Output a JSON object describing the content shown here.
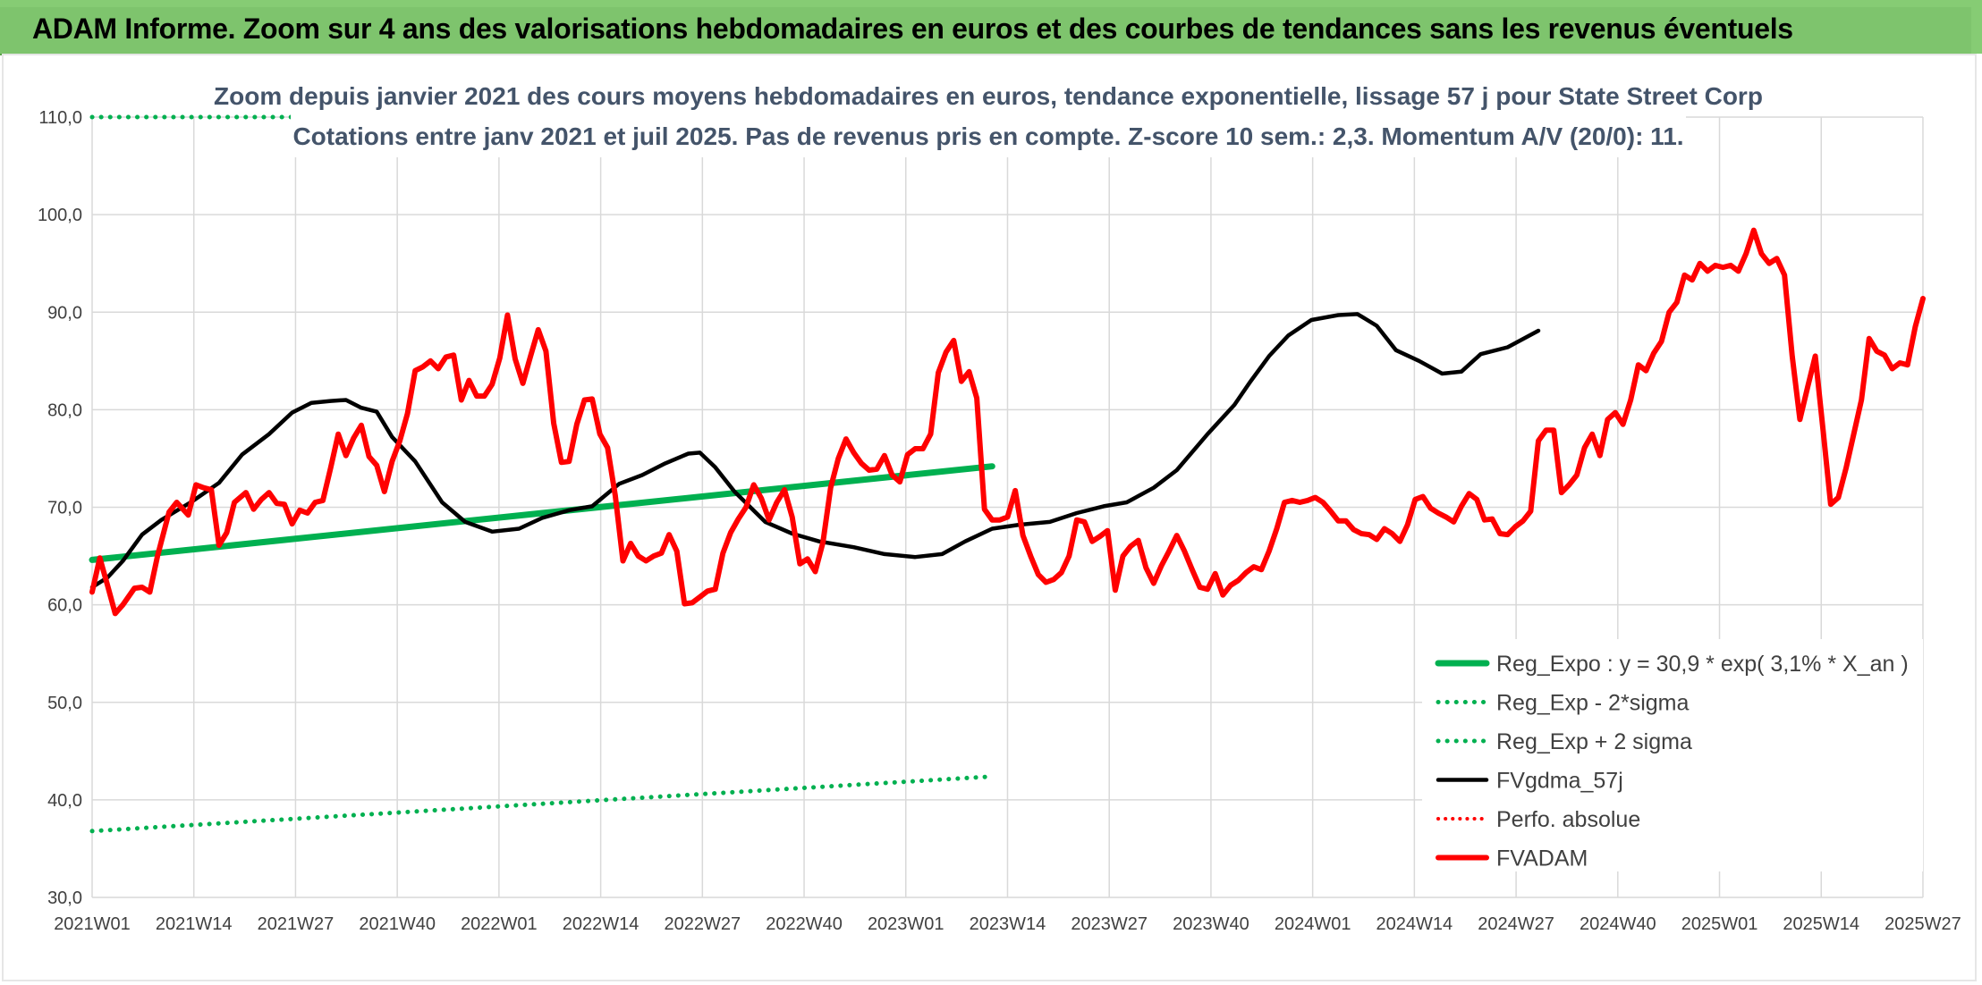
{
  "header": {
    "title": "ADAM Informe. Zoom sur 4 ans des valorisations hebdomadaires en euros et des courbes de tendances sans les revenus éventuels"
  },
  "colors": {
    "banner": "#7ec46d",
    "reg_expo": "#00b050",
    "reg_sigma": "#00b050",
    "fvgdma": "#000000",
    "perfo": "#ff0000",
    "fvadam": "#ff0000",
    "grid": "#d9d9d9"
  },
  "chart_data": {
    "type": "line",
    "title": "Zoom depuis janvier 2021 des cours moyens hebdomadaires en euros, tendance exponentielle, lissage 57 j pour State Street Corp",
    "subtitle": "Cotations entre janv 2021 et juil 2025. Pas de revenus pris en compte. Z-score 10 sem.: 2,3. Momentum A/V (20/0): 11.",
    "xlabel": "",
    "ylabel": "",
    "ylim": [
      30,
      110
    ],
    "y_ticks": [
      "30,0",
      "40,0",
      "50,0",
      "60,0",
      "70,0",
      "80,0",
      "90,0",
      "100,0",
      "110,0"
    ],
    "x_ticks": [
      "2021W01",
      "2021W14",
      "2021W27",
      "2021W40",
      "2022W01",
      "2022W14",
      "2022W27",
      "2022W40",
      "2023W01",
      "2023W14",
      "2023W27",
      "2023W40",
      "2024W01",
      "2024W14",
      "2024W27",
      "2024W40",
      "2025W01",
      "2025W14",
      "2025W27"
    ],
    "legend_position": "bottom-right",
    "grid": true,
    "series": [
      {
        "name": "Reg_Expo : y = 30,9 * exp( 3,1% *  X_an )",
        "style": "solid-thick",
        "points": [
          [
            0,
            64.6
          ],
          [
            234,
            74.2
          ]
        ]
      },
      {
        "name": "Reg_Exp - 2*sigma",
        "style": "dotted",
        "points": [
          [
            0,
            36.8
          ],
          [
            234,
            42.4
          ]
        ]
      },
      {
        "name": "Reg_Exp + 2 sigma",
        "style": "dotted",
        "points": [
          [
            0,
            110
          ],
          [
            234,
            110
          ]
        ]
      },
      {
        "name": "FVgdma_57j",
        "style": "solid",
        "points": [
          [
            0,
            61.8
          ],
          [
            4,
            62.8
          ],
          [
            8,
            64.5
          ],
          [
            13,
            67.2
          ],
          [
            18,
            68.7
          ],
          [
            26,
            70.6
          ],
          [
            33,
            72.5
          ],
          [
            39,
            75.4
          ],
          [
            46,
            77.5
          ],
          [
            52,
            79.7
          ],
          [
            57,
            80.7
          ],
          [
            62,
            80.9
          ],
          [
            66,
            81.0
          ],
          [
            70,
            80.2
          ],
          [
            74,
            79.8
          ],
          [
            78,
            77.2
          ],
          [
            84,
            74.7
          ],
          [
            91,
            70.5
          ],
          [
            97,
            68.5
          ],
          [
            104,
            67.5
          ],
          [
            111,
            67.8
          ],
          [
            117,
            68.9
          ],
          [
            124,
            69.7
          ],
          [
            130,
            70.1
          ],
          [
            137,
            72.4
          ],
          [
            143,
            73.3
          ],
          [
            149,
            74.5
          ],
          [
            155,
            75.5
          ],
          [
            158,
            75.6
          ],
          [
            162,
            74.1
          ],
          [
            167,
            71.6
          ],
          [
            175,
            68.5
          ],
          [
            182,
            67.3
          ],
          [
            189,
            66.5
          ],
          [
            198,
            65.9
          ],
          [
            206,
            65.2
          ],
          [
            214,
            64.9
          ],
          [
            221,
            65.2
          ],
          [
            227,
            66.5
          ],
          [
            234,
            67.8
          ],
          [
            241,
            68.2
          ],
          [
            249,
            68.5
          ],
          [
            256,
            69.4
          ],
          [
            263,
            70.1
          ],
          [
            269,
            70.5
          ],
          [
            276,
            72.0
          ],
          [
            282,
            73.8
          ],
          [
            290,
            77.5
          ],
          [
            297,
            80.5
          ],
          [
            301,
            82.8
          ],
          [
            306,
            85.5
          ],
          [
            311,
            87.6
          ],
          [
            317,
            89.2
          ],
          [
            324,
            89.7
          ],
          [
            329,
            89.8
          ],
          [
            334,
            88.6
          ],
          [
            339,
            86.1
          ],
          [
            345,
            85.0
          ],
          [
            351,
            83.7
          ],
          [
            356,
            83.9
          ],
          [
            361,
            85.7
          ],
          [
            368,
            86.4
          ],
          [
            376,
            88.1
          ]
        ]
      },
      {
        "name": "Perfo. absolue",
        "style": "dotted",
        "points": []
      },
      {
        "name": "FVADAM",
        "style": "solid-thick",
        "points": [
          [
            0,
            61.3
          ],
          [
            2,
            64.8
          ],
          [
            4,
            62.0
          ],
          [
            6,
            59.1
          ],
          [
            8,
            60.0
          ],
          [
            11,
            61.7
          ],
          [
            13,
            61.8
          ],
          [
            15,
            61.3
          ],
          [
            17,
            65.0
          ],
          [
            20,
            69.5
          ],
          [
            22,
            70.5
          ],
          [
            25,
            69.2
          ],
          [
            27,
            72.3
          ],
          [
            29,
            72.0
          ],
          [
            31,
            71.8
          ],
          [
            33,
            66.1
          ],
          [
            35,
            67.4
          ],
          [
            37,
            70.5
          ],
          [
            40,
            71.5
          ],
          [
            42,
            69.8
          ],
          [
            44,
            70.8
          ],
          [
            46,
            71.5
          ],
          [
            48,
            70.4
          ],
          [
            50,
            70.3
          ],
          [
            52,
            68.3
          ],
          [
            54,
            69.7
          ],
          [
            56,
            69.4
          ],
          [
            58,
            70.5
          ],
          [
            60,
            70.7
          ],
          [
            62,
            74.0
          ],
          [
            64,
            77.5
          ],
          [
            66,
            75.3
          ],
          [
            68,
            77.1
          ],
          [
            70,
            78.4
          ],
          [
            72,
            75.2
          ],
          [
            74,
            74.3
          ],
          [
            76,
            71.6
          ],
          [
            78,
            74.7
          ],
          [
            80,
            76.8
          ],
          [
            82,
            79.6
          ],
          [
            84,
            84.0
          ],
          [
            86,
            84.4
          ],
          [
            88,
            85.0
          ],
          [
            90,
            84.2
          ],
          [
            92,
            85.4
          ],
          [
            94,
            85.6
          ],
          [
            96,
            81.0
          ],
          [
            98,
            83.0
          ],
          [
            100,
            81.4
          ],
          [
            102,
            81.4
          ],
          [
            104,
            82.6
          ],
          [
            106,
            85.3
          ],
          [
            108,
            89.7
          ],
          [
            110,
            85.2
          ],
          [
            112,
            82.7
          ],
          [
            114,
            85.5
          ],
          [
            116,
            88.2
          ],
          [
            118,
            86.0
          ],
          [
            120,
            78.6
          ],
          [
            122,
            74.6
          ],
          [
            124,
            74.7
          ],
          [
            126,
            78.5
          ],
          [
            128,
            81.0
          ],
          [
            130,
            81.1
          ],
          [
            132,
            77.5
          ],
          [
            134,
            76.1
          ],
          [
            136,
            71.2
          ],
          [
            138,
            64.5
          ],
          [
            140,
            66.3
          ],
          [
            142,
            65.0
          ],
          [
            144,
            64.5
          ],
          [
            146,
            65.0
          ],
          [
            148,
            65.3
          ],
          [
            150,
            67.2
          ],
          [
            152,
            65.5
          ],
          [
            154,
            60.1
          ],
          [
            156,
            60.2
          ],
          [
            158,
            60.8
          ],
          [
            160,
            61.4
          ],
          [
            162,
            61.6
          ],
          [
            164,
            65.3
          ],
          [
            166,
            67.4
          ],
          [
            168,
            68.8
          ],
          [
            170,
            70.0
          ],
          [
            172,
            72.3
          ],
          [
            174,
            70.9
          ],
          [
            176,
            68.7
          ],
          [
            178,
            70.5
          ],
          [
            180,
            71.8
          ],
          [
            182,
            69.0
          ],
          [
            184,
            64.2
          ],
          [
            186,
            64.7
          ],
          [
            188,
            63.4
          ],
          [
            190,
            66.4
          ],
          [
            192,
            72.0
          ],
          [
            194,
            75.0
          ],
          [
            196,
            77.0
          ],
          [
            198,
            75.6
          ],
          [
            200,
            74.5
          ],
          [
            202,
            73.8
          ],
          [
            204,
            73.9
          ],
          [
            206,
            75.3
          ],
          [
            208,
            73.3
          ],
          [
            210,
            72.6
          ],
          [
            212,
            75.4
          ],
          [
            214,
            76.0
          ],
          [
            216,
            76.0
          ],
          [
            218,
            77.5
          ],
          [
            220,
            83.8
          ],
          [
            222,
            85.9
          ],
          [
            224,
            87.1
          ],
          [
            226,
            82.9
          ],
          [
            228,
            83.9
          ],
          [
            230,
            81.2
          ],
          [
            232,
            69.8
          ],
          [
            234,
            68.7
          ],
          [
            236,
            68.7
          ],
          [
            238,
            69.0
          ],
          [
            240,
            71.7
          ],
          [
            242,
            67.1
          ],
          [
            244,
            65.0
          ],
          [
            246,
            63.1
          ],
          [
            248,
            62.3
          ],
          [
            250,
            62.6
          ],
          [
            252,
            63.3
          ],
          [
            254,
            65.0
          ],
          [
            256,
            68.7
          ],
          [
            258,
            68.5
          ],
          [
            260,
            66.5
          ],
          [
            262,
            67.0
          ],
          [
            264,
            67.6
          ],
          [
            266,
            61.5
          ],
          [
            268,
            65.0
          ],
          [
            270,
            66.0
          ],
          [
            272,
            66.6
          ],
          [
            274,
            63.8
          ],
          [
            276,
            62.2
          ],
          [
            278,
            64.0
          ],
          [
            280,
            65.5
          ],
          [
            282,
            67.1
          ],
          [
            284,
            65.5
          ],
          [
            286,
            63.6
          ],
          [
            288,
            61.8
          ],
          [
            290,
            61.6
          ],
          [
            292,
            63.2
          ],
          [
            294,
            61.0
          ],
          [
            296,
            62.0
          ],
          [
            298,
            62.5
          ],
          [
            300,
            63.3
          ],
          [
            302,
            63.9
          ],
          [
            304,
            63.6
          ],
          [
            306,
            65.5
          ],
          [
            308,
            67.8
          ],
          [
            310,
            70.5
          ],
          [
            312,
            70.7
          ],
          [
            314,
            70.5
          ],
          [
            316,
            70.7
          ],
          [
            318,
            71.0
          ],
          [
            320,
            70.5
          ],
          [
            322,
            69.6
          ],
          [
            324,
            68.6
          ],
          [
            326,
            68.6
          ],
          [
            328,
            67.7
          ],
          [
            330,
            67.3
          ],
          [
            332,
            67.2
          ],
          [
            334,
            66.7
          ],
          [
            336,
            67.8
          ],
          [
            338,
            67.3
          ],
          [
            340,
            66.5
          ],
          [
            342,
            68.2
          ],
          [
            344,
            70.8
          ],
          [
            346,
            71.1
          ],
          [
            348,
            69.9
          ],
          [
            350,
            69.4
          ],
          [
            352,
            69.0
          ],
          [
            354,
            68.5
          ],
          [
            356,
            70.1
          ],
          [
            358,
            71.4
          ],
          [
            360,
            70.8
          ],
          [
            362,
            68.7
          ],
          [
            364,
            68.8
          ],
          [
            366,
            67.3
          ],
          [
            368,
            67.2
          ],
          [
            370,
            68.0
          ],
          [
            372,
            68.6
          ],
          [
            374,
            69.6
          ],
          [
            376,
            76.8
          ],
          [
            378,
            77.9
          ],
          [
            380,
            77.9
          ],
          [
            382,
            71.5
          ],
          [
            384,
            72.3
          ],
          [
            386,
            73.3
          ],
          [
            388,
            76.1
          ],
          [
            390,
            77.5
          ],
          [
            392,
            75.3
          ],
          [
            394,
            79.0
          ],
          [
            396,
            79.7
          ],
          [
            398,
            78.5
          ],
          [
            400,
            81.0
          ],
          [
            402,
            84.6
          ],
          [
            404,
            84.0
          ],
          [
            406,
            85.8
          ],
          [
            408,
            87.0
          ],
          [
            410,
            90.0
          ],
          [
            412,
            91.0
          ],
          [
            414,
            93.8
          ],
          [
            416,
            93.3
          ],
          [
            418,
            95.0
          ],
          [
            420,
            94.2
          ],
          [
            422,
            94.8
          ],
          [
            424,
            94.6
          ],
          [
            426,
            94.8
          ],
          [
            428,
            94.2
          ],
          [
            430,
            96.0
          ],
          [
            432,
            98.4
          ],
          [
            434,
            96.0
          ],
          [
            436,
            95.0
          ],
          [
            438,
            95.5
          ],
          [
            440,
            93.8
          ],
          [
            442,
            85.5
          ],
          [
            444,
            79.0
          ],
          [
            446,
            82.3
          ],
          [
            448,
            85.5
          ],
          [
            450,
            78.0
          ],
          [
            452,
            70.3
          ],
          [
            454,
            71.0
          ],
          [
            456,
            74.0
          ],
          [
            458,
            77.5
          ],
          [
            460,
            81.0
          ],
          [
            462,
            87.3
          ],
          [
            464,
            86.0
          ],
          [
            466,
            85.6
          ],
          [
            468,
            84.2
          ],
          [
            470,
            84.8
          ],
          [
            472,
            84.6
          ],
          [
            474,
            88.5
          ],
          [
            476,
            91.4
          ]
        ]
      }
    ]
  }
}
